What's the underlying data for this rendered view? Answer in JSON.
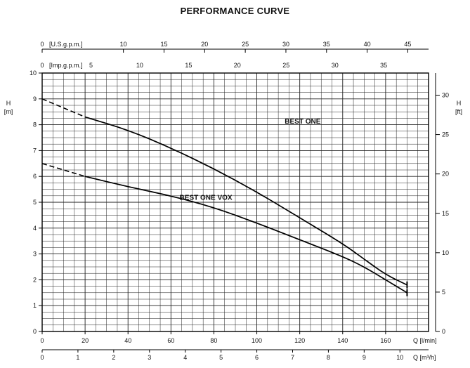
{
  "chart_data": {
    "type": "line",
    "title": "PERFORMANCE CURVE",
    "x_axis": {
      "label": "Q [l/min]",
      "range": [
        0,
        180
      ],
      "ticks": [
        0,
        20,
        40,
        60,
        80,
        100,
        120,
        140,
        160
      ]
    },
    "x_axis_secondary": {
      "label": "Q [m³/h]",
      "ticks": [
        0,
        1,
        2,
        3,
        4,
        5,
        6,
        7,
        8,
        9,
        10
      ]
    },
    "top_axis_us": {
      "label": "[U.S.g.p.m.]",
      "ticks": [
        0,
        10,
        15,
        20,
        25,
        30,
        35,
        40,
        45
      ]
    },
    "top_axis_imp": {
      "label": "[Imp.g.p.m.]",
      "ticks": [
        0,
        5,
        10,
        15,
        20,
        25,
        30,
        35
      ]
    },
    "y_axis": {
      "label_line1": "H",
      "label_line2": "[m]",
      "range": [
        0,
        10
      ],
      "ticks": [
        0,
        1,
        2,
        3,
        4,
        5,
        6,
        7,
        8,
        9,
        10
      ]
    },
    "y_axis_right": {
      "label_line1": "H",
      "label_line2": "[ft]",
      "ticks": [
        0,
        5,
        10,
        15,
        20,
        25,
        30
      ]
    },
    "grid": true,
    "series": [
      {
        "name": "BEST ONE",
        "dashed_x": [
          0,
          20
        ],
        "dashed_y": [
          9.0,
          8.3
        ],
        "x": [
          20,
          40,
          60,
          80,
          100,
          120,
          140,
          150,
          160,
          170
        ],
        "y": [
          8.3,
          7.8,
          7.1,
          6.3,
          5.4,
          4.4,
          3.4,
          2.8,
          2.2,
          1.8
        ]
      },
      {
        "name": "BEST ONE VOX",
        "dashed_x": [
          0,
          20
        ],
        "dashed_y": [
          6.5,
          6.0
        ],
        "x": [
          20,
          40,
          60,
          80,
          100,
          120,
          140,
          150,
          160,
          170
        ],
        "y": [
          6.0,
          5.6,
          5.25,
          4.8,
          4.2,
          3.55,
          2.9,
          2.5,
          2.0,
          1.5
        ]
      }
    ]
  }
}
